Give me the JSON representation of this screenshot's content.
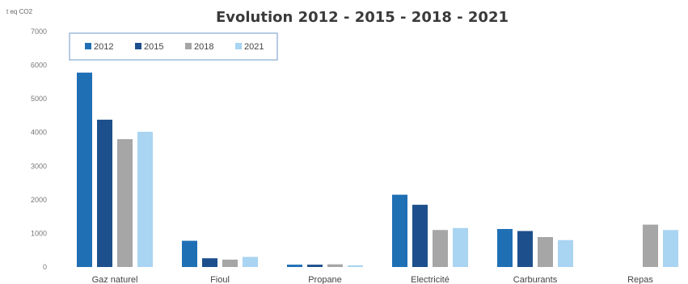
{
  "chart_data": {
    "type": "bar",
    "title": "Evolution 2012 - 2015 - 2018 - 2021",
    "ylabel": "t eq CO2",
    "xlabel": "",
    "ylim": [
      0,
      7000
    ],
    "yticks": [
      "0",
      "1000",
      "2000",
      "3000",
      "4000",
      "5000",
      "6000",
      "7000"
    ],
    "grid": false,
    "legend_position": "top-left",
    "categories": [
      "Gaz naturel",
      "Fioul",
      "Propane",
      "Electricité",
      "Carburants",
      "Repas"
    ],
    "series": [
      {
        "name": "2012",
        "color": "#1f6fb5",
        "values": [
          5780,
          780,
          70,
          2150,
          1130,
          null
        ]
      },
      {
        "name": "2015",
        "color": "#1d4f8c",
        "values": [
          4380,
          260,
          70,
          1850,
          1070,
          null
        ]
      },
      {
        "name": "2018",
        "color": "#a6a6a6",
        "values": [
          3800,
          220,
          80,
          1100,
          890,
          1260
        ]
      },
      {
        "name": "2021",
        "color": "#a9d4f2",
        "values": [
          4020,
          300,
          50,
          1160,
          800,
          1100
        ]
      }
    ]
  }
}
